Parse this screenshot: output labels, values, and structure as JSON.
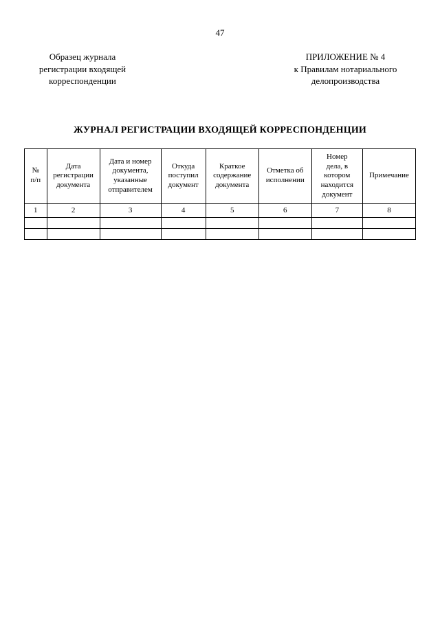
{
  "page_number": "47",
  "header": {
    "left": {
      "line1": "Образец журнала",
      "line2": "регистрации входящей",
      "line3": "корреспонденции"
    },
    "right": {
      "line1": "ПРИЛОЖЕНИЕ № 4",
      "line2": "к Правилам нотариального",
      "line3": "делопроизводства"
    }
  },
  "title": "ЖУРНАЛ РЕГИСТРАЦИИ ВХОДЯЩЕЙ КОРРЕСПОНДЕНЦИИ",
  "table": {
    "columns": [
      "№\nп/п",
      "Дата\nрегистрации\nдокумента",
      "Дата и номер\nдокумента,\nуказанные\nотправителем",
      "Откуда\nпоступил\nдокумент",
      "Краткое\nсодержание\nдокумента",
      "Отметка об\nисполнении",
      "Номер\nдела, в\nкотором\nнаходится\nдокумент",
      "Примечание"
    ],
    "number_row": [
      "1",
      "2",
      "3",
      "4",
      "5",
      "6",
      "7",
      "8"
    ],
    "column_widths": [
      "5.5%",
      "13%",
      "15%",
      "11%",
      "13%",
      "13%",
      "12.5%",
      "13%"
    ],
    "border_color": "#000000",
    "background_color": "#ffffff",
    "header_fontsize": 11,
    "empty_rows": 2
  }
}
